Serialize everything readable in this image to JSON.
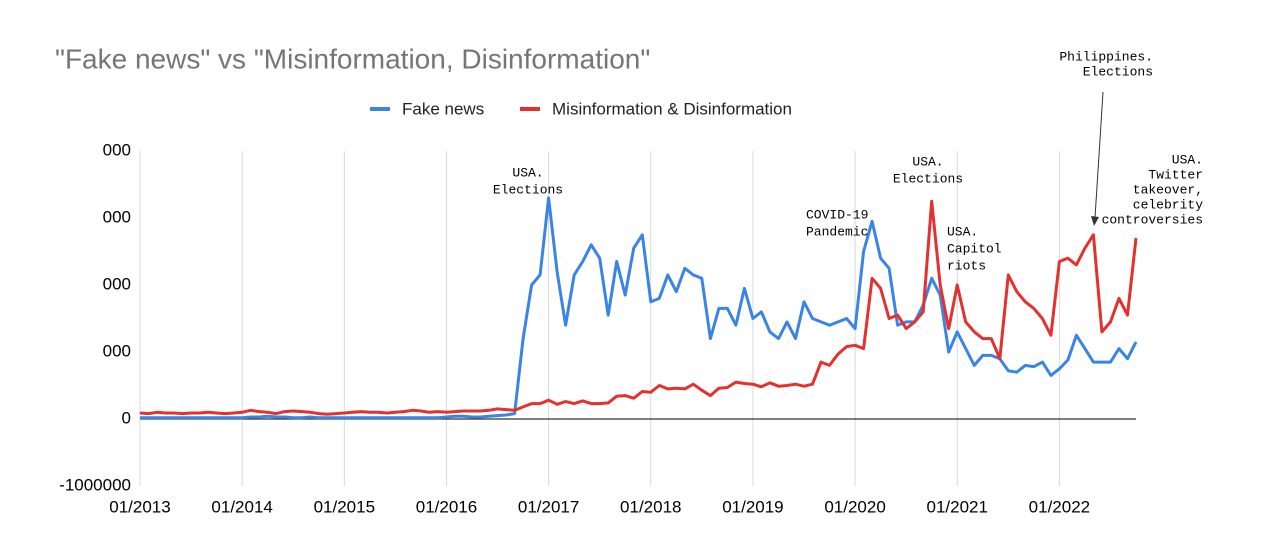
{
  "chart_data": {
    "type": "line",
    "title": "\"Fake news\" vs \"Misinformation, Disinformation\"",
    "categories": [
      "01/2013",
      null,
      null,
      null,
      null,
      null,
      null,
      null,
      null,
      null,
      null,
      null,
      "01/2014",
      null,
      null,
      null,
      null,
      null,
      null,
      null,
      null,
      null,
      null,
      null,
      "01/2015",
      null,
      null,
      null,
      null,
      null,
      null,
      null,
      null,
      null,
      null,
      null,
      "01/2016",
      null,
      null,
      null,
      null,
      null,
      null,
      null,
      null,
      null,
      null,
      null,
      "01/2017",
      null,
      null,
      null,
      null,
      null,
      null,
      null,
      null,
      null,
      null,
      null,
      "01/2018",
      null,
      null,
      null,
      null,
      null,
      null,
      null,
      null,
      null,
      null,
      null,
      "01/2019",
      null,
      null,
      null,
      null,
      null,
      null,
      null,
      null,
      null,
      null,
      null,
      "01/2020",
      null,
      null,
      null,
      null,
      null,
      null,
      null,
      null,
      null,
      null,
      null,
      "01/2021",
      null,
      null,
      null,
      null,
      null,
      null,
      null,
      null,
      null,
      null,
      null,
      "01/2022",
      null,
      null,
      null,
      null,
      null,
      null,
      null,
      null,
      null
    ],
    "series": [
      {
        "name": "Fake news",
        "color": "#3a84e6",
        "values": [
          20000,
          20000,
          20000,
          20000,
          20000,
          20000,
          20000,
          20000,
          20000,
          20000,
          20000,
          20000,
          20000,
          30000,
          30000,
          40000,
          30000,
          30000,
          20000,
          20000,
          30000,
          20000,
          20000,
          20000,
          20000,
          20000,
          20000,
          20000,
          20000,
          20000,
          20000,
          20000,
          20000,
          20000,
          20000,
          20000,
          30000,
          40000,
          40000,
          30000,
          30000,
          40000,
          50000,
          60000,
          80000,
          1200000,
          2000000,
          2150000,
          3300000,
          2200000,
          1400000,
          2150000,
          2350000,
          2600000,
          2400000,
          1550000,
          2350000,
          1850000,
          2550000,
          2750000,
          1750000,
          1800000,
          2150000,
          1900000,
          2250000,
          2150000,
          2100000,
          1200000,
          1650000,
          1650000,
          1400000,
          1950000,
          1500000,
          1600000,
          1300000,
          1200000,
          1450000,
          1200000,
          1750000,
          1500000,
          1450000,
          1400000,
          1450000,
          1500000,
          1350000,
          2500000,
          2950000,
          2400000,
          2250000,
          1400000,
          1450000,
          1450000,
          1700000,
          2100000,
          1850000,
          1000000,
          1300000,
          1050000,
          800000,
          950000,
          950000,
          900000,
          720000,
          700000,
          800000,
          780000,
          850000,
          650000,
          750000,
          880000,
          1250000,
          1050000,
          850000,
          850000,
          850000,
          1050000,
          900000,
          1150000
        ]
      },
      {
        "name": "Misinformation & Disinformation",
        "color": "#e53030",
        "values": [
          90000,
          80000,
          100000,
          90000,
          90000,
          80000,
          90000,
          90000,
          100000,
          90000,
          80000,
          90000,
          100000,
          130000,
          110000,
          100000,
          80000,
          110000,
          120000,
          110000,
          100000,
          80000,
          70000,
          80000,
          90000,
          100000,
          110000,
          100000,
          100000,
          90000,
          100000,
          110000,
          130000,
          120000,
          100000,
          110000,
          100000,
          110000,
          120000,
          120000,
          120000,
          130000,
          150000,
          140000,
          130000,
          180000,
          230000,
          230000,
          280000,
          220000,
          260000,
          230000,
          270000,
          230000,
          230000,
          240000,
          340000,
          350000,
          310000,
          410000,
          400000,
          500000,
          450000,
          460000,
          450000,
          520000,
          430000,
          350000,
          460000,
          470000,
          550000,
          530000,
          520000,
          480000,
          540000,
          490000,
          500000,
          520000,
          490000,
          520000,
          850000,
          800000,
          970000,
          1080000,
          1100000,
          1050000,
          2100000,
          1950000,
          1500000,
          1550000,
          1350000,
          1450000,
          1600000,
          3250000,
          2000000,
          1350000,
          2000000,
          1450000,
          1300000,
          1200000,
          1200000,
          900000,
          2150000,
          1900000,
          1750000,
          1650000,
          1500000,
          1250000,
          2350000,
          2400000,
          2300000,
          2550000,
          2750000,
          1300000,
          1450000,
          1800000,
          1550000,
          2700000
        ]
      }
    ],
    "ylim": [
      -1000000,
      4000000
    ],
    "yticks": [
      {
        "value": -1000000,
        "label": "-1000000"
      },
      0,
      {
        "value": 1000000,
        "label": "000"
      },
      {
        "value": 2000000,
        "label": "000"
      },
      {
        "value": 3000000,
        "label": "000"
      },
      {
        "value": 4000000,
        "label": "000"
      }
    ],
    "grid": true,
    "legend": "top",
    "annotations": [
      {
        "lines": [
          "USA.",
          "Elections"
        ]
      },
      {
        "lines": [
          "COVID-19",
          "Pandemic"
        ]
      },
      {
        "lines": [
          "USA.",
          "Elections"
        ]
      },
      {
        "lines": [
          "USA.",
          "Capitol",
          "riots"
        ]
      },
      {
        "lines": [
          "Philippines.",
          "Elections"
        ]
      },
      {
        "lines": [
          "USA.",
          "Twitter",
          "takeover,",
          "celebrity",
          "controversies"
        ]
      }
    ]
  }
}
